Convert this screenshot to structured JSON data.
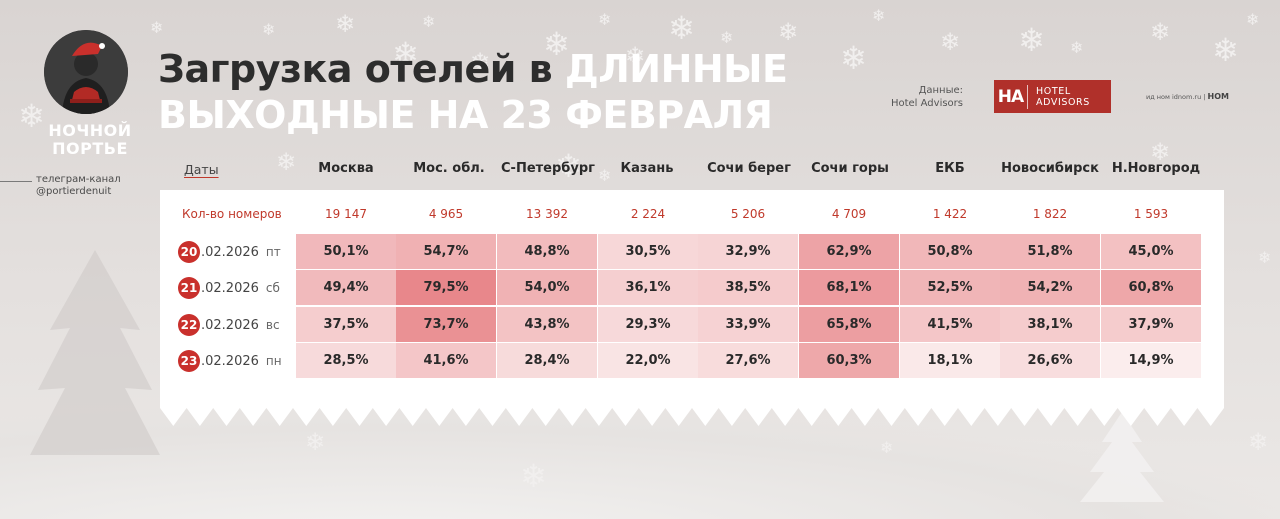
{
  "brand": {
    "logo_name_line1": "НОЧНОЙ",
    "logo_name_line2": "ПОРТЬЕ",
    "telegram_line1": "телеграм-канал",
    "telegram_line2": "@portierdenuit"
  },
  "title": {
    "part1": "Загрузка отелей в ",
    "part2": "ДЛИННЫЕ",
    "part3": "ВЫХОДНЫЕ НА 23 ФЕВРАЛЯ"
  },
  "source": {
    "label": "Данные:",
    "name": "Hotel Advisors",
    "badge_mark": "HA",
    "badge_text_line1": "HOTEL",
    "badge_text_line2": "ADVISORS",
    "credits": "ид ном idnom.ru",
    "credits_brand": "HOM"
  },
  "colors": {
    "accent": "#c9302c",
    "panel": "#ffffff",
    "heat_low": "#fbeeee",
    "heat_high": "#e8868a"
  },
  "chart_data": {
    "type": "table",
    "dates_header": "Даты",
    "rooms_label": "Кол-во номеров",
    "cities": [
      "Москва",
      "Мос. обл.",
      "С-Петербург",
      "Казань",
      "Сочи берег",
      "Сочи горы",
      "ЕКБ",
      "Новосибирск",
      "Н.Новгород"
    ],
    "rooms": [
      "19 147",
      "4 965",
      "13 392",
      "2 224",
      "5 206",
      "4 709",
      "1 422",
      "1 822",
      "1 593"
    ],
    "rows": [
      {
        "day": "20",
        "date_rest": ".02.2026",
        "weekday": "пт",
        "values": [
          50.1,
          54.7,
          48.8,
          30.5,
          32.9,
          62.9,
          50.8,
          51.8,
          45.0
        ]
      },
      {
        "day": "21",
        "date_rest": ".02.2026",
        "weekday": "сб",
        "values": [
          49.4,
          79.5,
          54.0,
          36.1,
          38.5,
          68.1,
          52.5,
          54.2,
          60.8
        ]
      },
      {
        "day": "22",
        "date_rest": ".02.2026",
        "weekday": "вс",
        "values": [
          37.5,
          73.7,
          43.8,
          29.3,
          33.9,
          65.8,
          41.5,
          38.1,
          37.9
        ]
      },
      {
        "day": "23",
        "date_rest": ".02.2026",
        "weekday": "пн",
        "values": [
          28.5,
          41.6,
          28.4,
          22.0,
          27.6,
          60.3,
          18.1,
          26.6,
          14.9
        ]
      }
    ],
    "value_suffix": "%",
    "decimal_separator": ","
  }
}
